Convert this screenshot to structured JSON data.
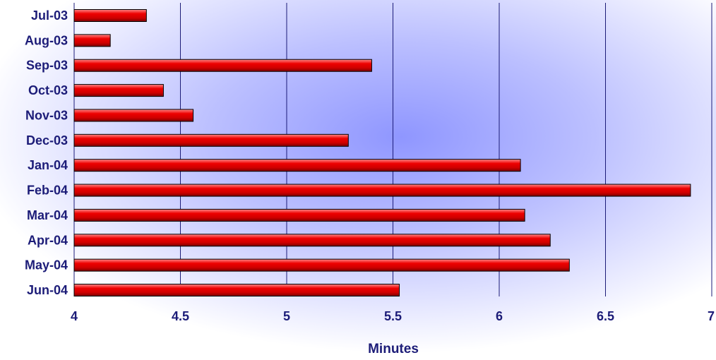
{
  "chart_data": {
    "type": "bar",
    "orientation": "horizontal",
    "categories": [
      "Jul-03",
      "Aug-03",
      "Sep-03",
      "Oct-03",
      "Nov-03",
      "Dec-03",
      "Jan-04",
      "Feb-04",
      "Mar-04",
      "Apr-04",
      "May-04",
      "Jun-04"
    ],
    "values": [
      4.34,
      4.17,
      5.4,
      4.42,
      4.56,
      5.29,
      6.1,
      6.9,
      6.12,
      6.24,
      6.33,
      5.53
    ],
    "title": "",
    "xlabel": "Minutes",
    "ylabel": "",
    "xlim": [
      4,
      7
    ],
    "xticks": [
      "4",
      "4.5",
      "5",
      "5.5",
      "6",
      "6.5",
      "7"
    ],
    "xtick_values": [
      4,
      4.5,
      5,
      5.5,
      6,
      6.5,
      7
    ],
    "grid": "vertical",
    "legend": "none",
    "colors": {
      "bar_fill": "#ee0000",
      "bar_highlight": "#ff8a8a",
      "bar_shadow": "#7a0000",
      "bar_outline": "#000000",
      "gridline": "#1c1c78",
      "text": "#1c1c78",
      "background_center": "#8f96ff",
      "background_edge": "#ffffff"
    }
  }
}
